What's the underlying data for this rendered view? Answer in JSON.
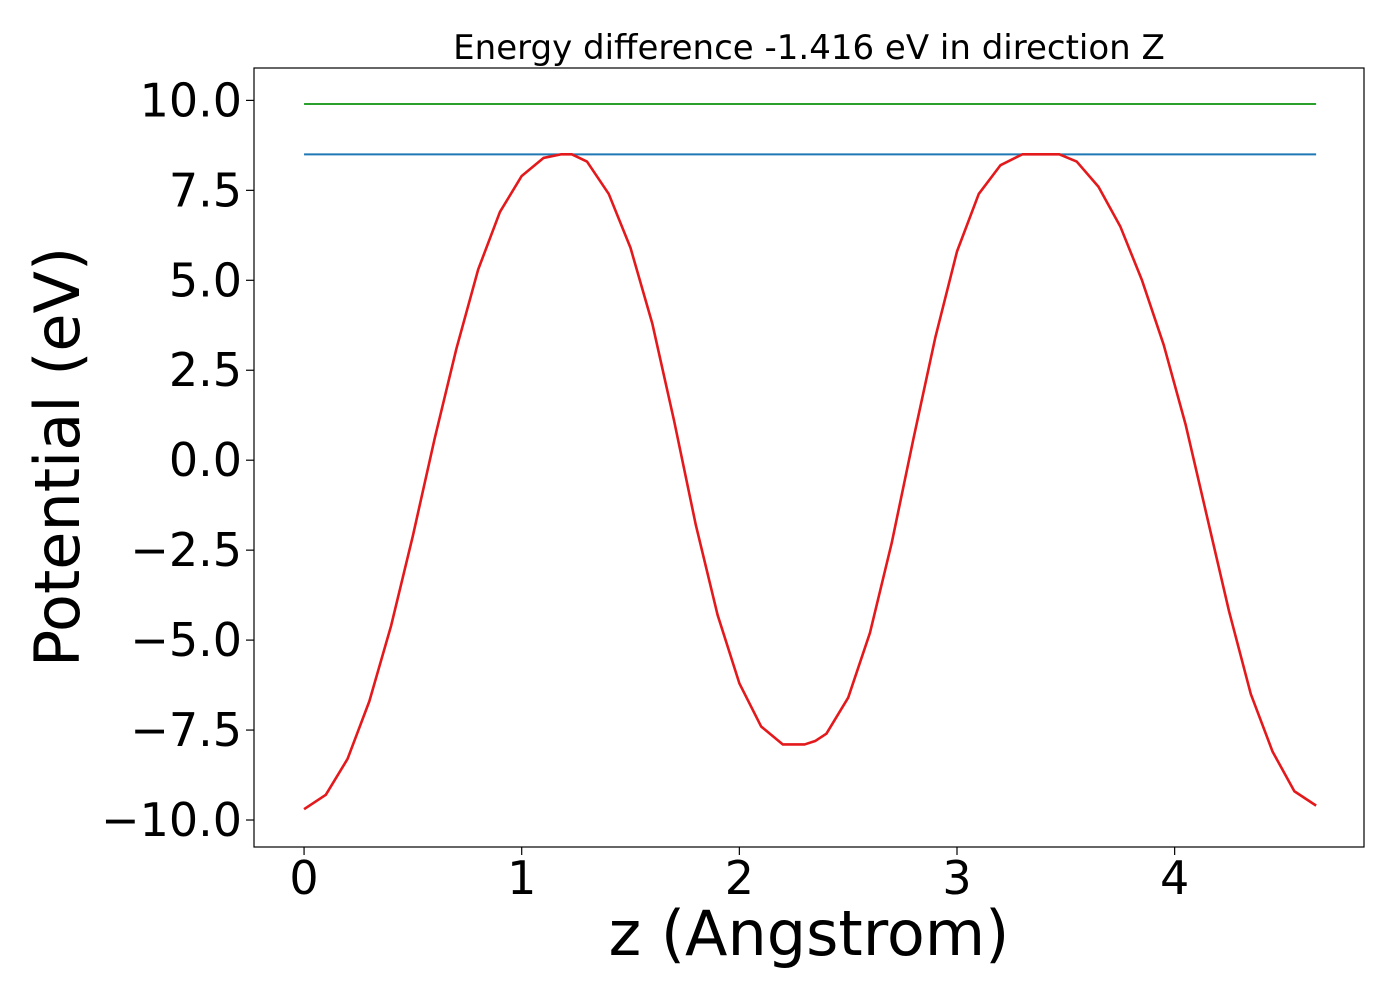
{
  "chart_data": {
    "type": "line",
    "title": "Energy difference -1.416 eV in direction Z",
    "xlabel": "z (Angstrom)",
    "ylabel": "Potential (eV)",
    "xlim": [
      -0.23,
      4.87
    ],
    "ylim": [
      -10.75,
      10.9
    ],
    "x_ticks": [
      0,
      1,
      2,
      3,
      4
    ],
    "x_tick_labels": [
      "0",
      "1",
      "2",
      "3",
      "4"
    ],
    "y_ticks": [
      10.0,
      7.5,
      5.0,
      2.5,
      0.0,
      -2.5,
      -5.0,
      -7.5,
      -10.0
    ],
    "y_tick_labels": [
      "10.0",
      "7.5",
      "5.0",
      "2.5",
      "0.0",
      "−2.5",
      "−5.0",
      "−7.5",
      "−10.0"
    ],
    "grid": false,
    "legend": "none",
    "colors": {
      "potential": "#e3191c",
      "upper_line": "#2ca02c",
      "max_line": "#1f77b4"
    },
    "series": [
      {
        "key": "potential",
        "x": [
          0.0,
          0.1,
          0.2,
          0.3,
          0.4,
          0.5,
          0.6,
          0.7,
          0.8,
          0.9,
          1.0,
          1.1,
          1.18,
          1.23,
          1.3,
          1.4,
          1.5,
          1.6,
          1.7,
          1.8,
          1.9,
          2.0,
          2.1,
          2.2,
          2.3,
          2.35,
          2.4,
          2.5,
          2.6,
          2.7,
          2.8,
          2.9,
          3.0,
          3.1,
          3.2,
          3.3,
          3.4,
          3.47,
          3.55,
          3.65,
          3.75,
          3.85,
          3.95,
          4.05,
          4.15,
          4.25,
          4.35,
          4.45,
          4.55,
          4.65
        ],
        "values": [
          -9.7,
          -9.3,
          -8.3,
          -6.7,
          -4.6,
          -2.1,
          0.6,
          3.1,
          5.3,
          6.9,
          7.9,
          8.4,
          8.5,
          8.5,
          8.3,
          7.4,
          5.9,
          3.8,
          1.1,
          -1.8,
          -4.3,
          -6.2,
          -7.4,
          -7.9,
          -7.9,
          -7.8,
          -7.6,
          -6.6,
          -4.8,
          -2.3,
          0.6,
          3.4,
          5.8,
          7.4,
          8.2,
          8.5,
          8.5,
          8.5,
          8.3,
          7.6,
          6.5,
          5.0,
          3.2,
          1.0,
          -1.6,
          -4.2,
          -6.5,
          -8.1,
          -9.2,
          -9.6
        ]
      },
      {
        "key": "upper_line",
        "x": [
          0.0,
          4.65
        ],
        "values": [
          9.9,
          9.9
        ]
      },
      {
        "key": "max_line",
        "x": [
          0.0,
          4.65
        ],
        "values": [
          8.5,
          8.5
        ]
      }
    ]
  }
}
